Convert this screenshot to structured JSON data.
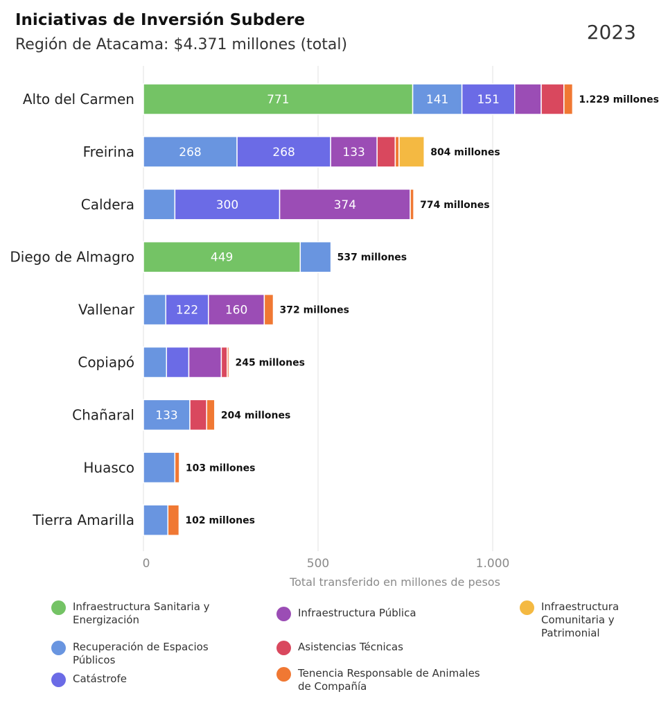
{
  "header": {
    "title": "Iniciativas de Inversión Subdere",
    "subtitle": "Región de Atacama: $4.371 millones (total)",
    "year": "2023"
  },
  "colors": {
    "sanitaria": "#74c365",
    "espacios": "#6995e0",
    "catastrofe": "#6b6be6",
    "publica": "#9b4db5",
    "tecnicas": "#d9485e",
    "animales": "#f07833",
    "comunitaria": "#f4b942"
  },
  "legend": [
    {
      "key": "sanitaria",
      "label": "Infraestructura Sanitaria y Energización"
    },
    {
      "key": "espacios",
      "label": "Recuperación de Espacios Públicos"
    },
    {
      "key": "catastrofe",
      "label": "Catástrofe"
    },
    {
      "key": "publica",
      "label": "Infraestructura Pública"
    },
    {
      "key": "tecnicas",
      "label": "Asistencias Técnicas"
    },
    {
      "key": "animales",
      "label": "Tenencia Responsable de Animales de Compañía"
    },
    {
      "key": "comunitaria",
      "label": "Infraestructura Comunitaria y Patrimonial"
    }
  ],
  "chart_data": {
    "type": "bar",
    "orientation": "horizontal",
    "stacked": true,
    "xlabel": "Total transferido en millones de pesos",
    "xlim": [
      0,
      1250
    ],
    "xticks": [
      0,
      500,
      1000
    ],
    "xtick_labels": [
      "0",
      "500",
      "1.000"
    ],
    "grid": "vertical",
    "legend_position": "bottom",
    "categories": [
      "Alto del Carmen",
      "Freirina",
      "Caldera",
      "Diego de Almagro",
      "Vallenar",
      "Copiapó",
      "Chañaral",
      "Huasco",
      "Tierra Amarilla"
    ],
    "totals": [
      1229,
      804,
      774,
      537,
      372,
      245,
      204,
      103,
      102
    ],
    "total_labels": [
      "1.229 millones",
      "804 millones",
      "774 millones",
      "537 millones",
      "372 millones",
      "245 millones",
      "204 millones",
      "103 millones",
      "102 millones"
    ],
    "series": [
      {
        "key": "sanitaria",
        "values": [
          771,
          0,
          0,
          449,
          0,
          0,
          0,
          0,
          0
        ]
      },
      {
        "key": "espacios",
        "values": [
          141,
          268,
          90,
          88,
          64,
          66,
          133,
          90,
          70
        ]
      },
      {
        "key": "catastrofe",
        "values": [
          151,
          268,
          300,
          0,
          122,
          64,
          0,
          0,
          0
        ]
      },
      {
        "key": "publica",
        "values": [
          76,
          133,
          374,
          0,
          160,
          93,
          0,
          0,
          0
        ]
      },
      {
        "key": "tecnicas",
        "values": [
          65,
          52,
          0,
          0,
          0,
          17,
          48,
          0,
          0
        ]
      },
      {
        "key": "animales",
        "values": [
          25,
          11,
          10,
          0,
          26,
          5,
          23,
          13,
          32
        ]
      },
      {
        "key": "comunitaria",
        "values": [
          0,
          72,
          0,
          0,
          0,
          0,
          0,
          0,
          0
        ]
      }
    ],
    "segment_labels": [
      [
        "771",
        "141",
        "151",
        "",
        "",
        "",
        ""
      ],
      [
        "",
        "268",
        "268",
        "133",
        "",
        "",
        ""
      ],
      [
        "",
        "",
        "300",
        "374",
        "",
        "",
        ""
      ],
      [
        "449",
        "",
        "",
        "",
        "",
        "",
        ""
      ],
      [
        "",
        "",
        "122",
        "160",
        "",
        "",
        ""
      ],
      [
        "",
        "",
        "",
        "",
        "",
        "",
        ""
      ],
      [
        "",
        "133",
        "",
        "",
        "",
        "",
        ""
      ],
      [
        "",
        "",
        "",
        "",
        "",
        "",
        ""
      ],
      [
        "",
        "",
        "",
        "",
        "",
        "",
        ""
      ]
    ]
  }
}
